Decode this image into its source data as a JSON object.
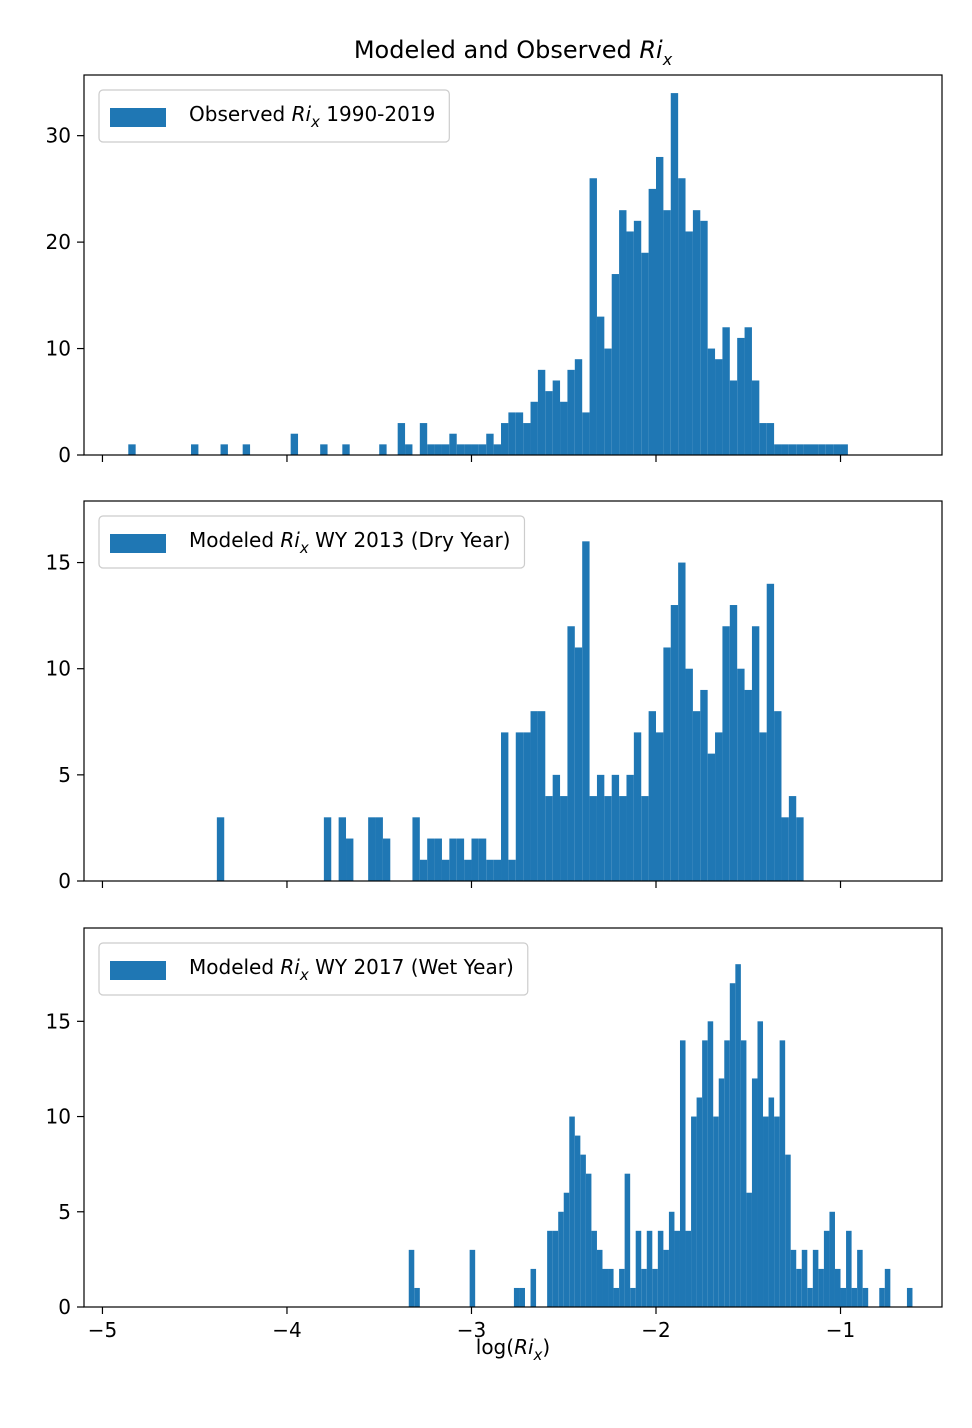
{
  "figure": {
    "title_prefix": "Modeled and Observed ",
    "title_sym": "Ri",
    "title_sub": "x"
  },
  "xaxis": {
    "label_prefix": "log(",
    "label_sym": "Ri",
    "label_sub": "x",
    "label_suffix": ")",
    "range": [
      -5.1,
      -0.45
    ],
    "ticks": [
      -5,
      -4,
      -3,
      -2,
      -1
    ],
    "tick_labels": [
      "−5",
      "−4",
      "−3",
      "−2",
      "−1"
    ]
  },
  "colors": {
    "bar": "#1f77b4"
  },
  "chart_data": [
    {
      "type": "bar",
      "name_prefix": "Observed ",
      "name_sym": "Ri",
      "name_sub": "x",
      "name_suffix": " 1990-2019",
      "legend_position": "upper-left",
      "bin_width": 0.04,
      "ylim": [
        0,
        35.7
      ],
      "yticks": [
        0,
        10,
        20,
        30
      ],
      "x": [
        -4.86,
        -4.52,
        -4.36,
        -4.24,
        -3.98,
        -3.82,
        -3.7,
        -3.5,
        -3.4,
        -3.36,
        -3.28,
        -3.24,
        -3.2,
        -3.16,
        -3.12,
        -3.08,
        -3.04,
        -3.0,
        -2.96,
        -2.92,
        -2.88,
        -2.84,
        -2.8,
        -2.76,
        -2.72,
        -2.68,
        -2.64,
        -2.6,
        -2.56,
        -2.52,
        -2.48,
        -2.44,
        -2.4,
        -2.36,
        -2.32,
        -2.28,
        -2.24,
        -2.2,
        -2.16,
        -2.12,
        -2.08,
        -2.04,
        -2.0,
        -1.96,
        -1.92,
        -1.88,
        -1.84,
        -1.8,
        -1.76,
        -1.72,
        -1.68,
        -1.64,
        -1.6,
        -1.56,
        -1.52,
        -1.48,
        -1.44,
        -1.4,
        -1.36,
        -1.32,
        -1.28,
        -1.24,
        -1.2,
        -1.16,
        -1.12,
        -1.08,
        -1.04,
        -1.0
      ],
      "values": [
        1,
        1,
        1,
        1,
        2,
        1,
        1,
        1,
        3,
        1,
        3,
        1,
        1,
        1,
        2,
        1,
        1,
        1,
        1,
        2,
        1,
        3,
        4,
        4,
        3,
        5,
        8,
        6,
        7,
        5,
        8,
        9,
        4,
        26,
        13,
        10,
        17,
        23,
        21,
        22,
        19,
        25,
        28,
        23,
        34,
        26,
        21,
        23,
        22,
        10,
        9,
        12,
        7,
        11,
        12,
        7,
        3,
        3,
        1,
        1,
        1,
        1,
        1,
        1,
        1,
        1,
        1,
        1
      ]
    },
    {
      "type": "bar",
      "name_prefix": "Modeled ",
      "name_sym": "Ri",
      "name_sub": "x",
      "name_suffix": " WY 2013 (Dry Year)",
      "legend_position": "upper-left",
      "bin_width": 0.04,
      "ylim": [
        0,
        17.9
      ],
      "yticks": [
        0,
        5,
        10,
        15
      ],
      "x": [
        -4.38,
        -3.8,
        -3.72,
        -3.68,
        -3.56,
        -3.52,
        -3.48,
        -3.32,
        -3.28,
        -3.24,
        -3.2,
        -3.16,
        -3.12,
        -3.08,
        -3.04,
        -3.0,
        -2.96,
        -2.92,
        -2.88,
        -2.84,
        -2.8,
        -2.76,
        -2.72,
        -2.68,
        -2.64,
        -2.6,
        -2.56,
        -2.52,
        -2.48,
        -2.44,
        -2.4,
        -2.36,
        -2.32,
        -2.28,
        -2.24,
        -2.2,
        -2.16,
        -2.12,
        -2.08,
        -2.04,
        -2.0,
        -1.96,
        -1.92,
        -1.88,
        -1.84,
        -1.8,
        -1.76,
        -1.72,
        -1.68,
        -1.64,
        -1.6,
        -1.56,
        -1.52,
        -1.48,
        -1.44,
        -1.4,
        -1.36,
        -1.32,
        -1.28,
        -1.24
      ],
      "values": [
        3,
        3,
        3,
        2,
        3,
        3,
        2,
        3,
        1,
        2,
        2,
        1,
        2,
        2,
        1,
        2,
        2,
        1,
        1,
        7,
        1,
        7,
        7,
        8,
        8,
        4,
        5,
        4,
        12,
        11,
        16,
        4,
        5,
        4,
        5,
        4,
        5,
        7,
        4,
        8,
        7,
        11,
        13,
        15,
        10,
        8,
        9,
        6,
        7,
        12,
        13,
        10,
        9,
        12,
        7,
        14,
        8,
        3,
        4,
        3
      ]
    },
    {
      "type": "bar",
      "name_prefix": "Modeled ",
      "name_sym": "Ri",
      "name_sub": "x",
      "name_suffix": " WY 2017 (Wet Year)",
      "legend_position": "upper-left",
      "bin_width": 0.03,
      "ylim": [
        0,
        19.9
      ],
      "yticks": [
        0,
        5,
        10,
        15
      ],
      "x": [
        -3.34,
        -3.31,
        -3.01,
        -2.77,
        -2.74,
        -2.68,
        -2.59,
        -2.56,
        -2.53,
        -2.5,
        -2.47,
        -2.44,
        -2.41,
        -2.38,
        -2.35,
        -2.32,
        -2.29,
        -2.26,
        -2.23,
        -2.2,
        -2.17,
        -2.14,
        -2.11,
        -2.08,
        -2.05,
        -2.02,
        -1.99,
        -1.96,
        -1.93,
        -1.9,
        -1.87,
        -1.84,
        -1.81,
        -1.78,
        -1.75,
        -1.72,
        -1.69,
        -1.66,
        -1.63,
        -1.6,
        -1.57,
        -1.54,
        -1.51,
        -1.48,
        -1.45,
        -1.42,
        -1.39,
        -1.36,
        -1.33,
        -1.3,
        -1.27,
        -1.24,
        -1.21,
        -1.18,
        -1.15,
        -1.12,
        -1.09,
        -1.06,
        -1.03,
        -1.0,
        -0.97,
        -0.94,
        -0.91,
        -0.88,
        -0.79,
        -0.76,
        -0.64
      ],
      "values": [
        3,
        1,
        3,
        1,
        1,
        2,
        4,
        4,
        5,
        6,
        10,
        9,
        8,
        7,
        4,
        3,
        2,
        2,
        1,
        2,
        7,
        1,
        4,
        2,
        4,
        2,
        4,
        3,
        5,
        4,
        14,
        4,
        10,
        11,
        14,
        15,
        10,
        12,
        14,
        17,
        18,
        14,
        6,
        12,
        15,
        10,
        11,
        10,
        14,
        8,
        3,
        2,
        3,
        1,
        3,
        2,
        4,
        5,
        2,
        1,
        4,
        1,
        3,
        1,
        1,
        2,
        1
      ]
    }
  ]
}
